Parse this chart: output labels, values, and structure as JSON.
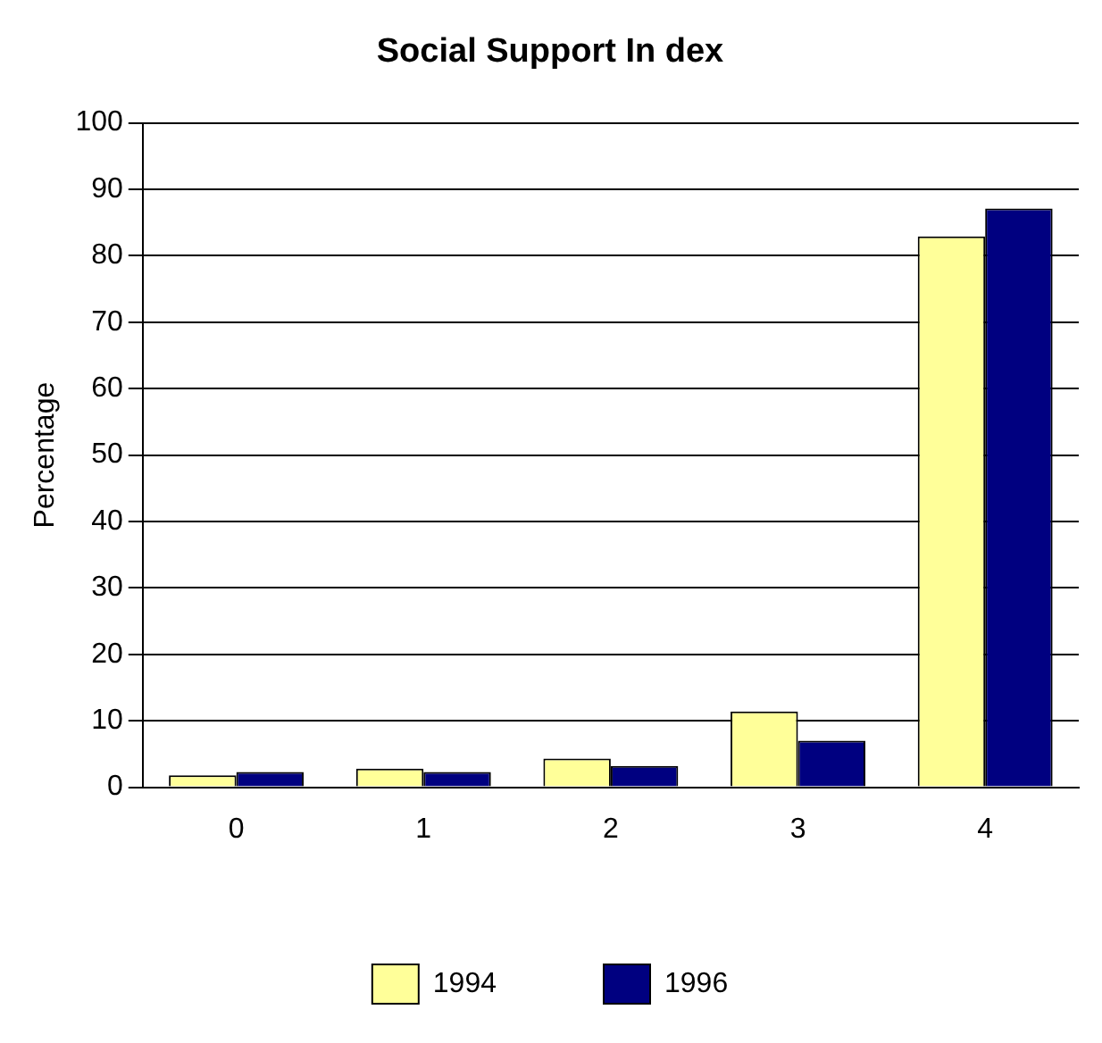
{
  "chart_data": {
    "type": "bar",
    "title": "Social Support In dex",
    "ylabel": "Percentage",
    "categories": [
      "0",
      "1",
      "2",
      "3",
      "4"
    ],
    "series": [
      {
        "name": "1994",
        "color": "#ffff99",
        "values": [
          1.8,
          2.8,
          4.3,
          11.4,
          82.9
        ]
      },
      {
        "name": "1996",
        "color": "#000080",
        "values": [
          2.3,
          2.3,
          3.2,
          7.0,
          87.1
        ]
      }
    ],
    "ylim": [
      0,
      100
    ],
    "yticks": [
      0,
      10,
      20,
      30,
      40,
      50,
      60,
      70,
      80,
      90,
      100
    ],
    "grid": "y",
    "legend": "bottom"
  }
}
